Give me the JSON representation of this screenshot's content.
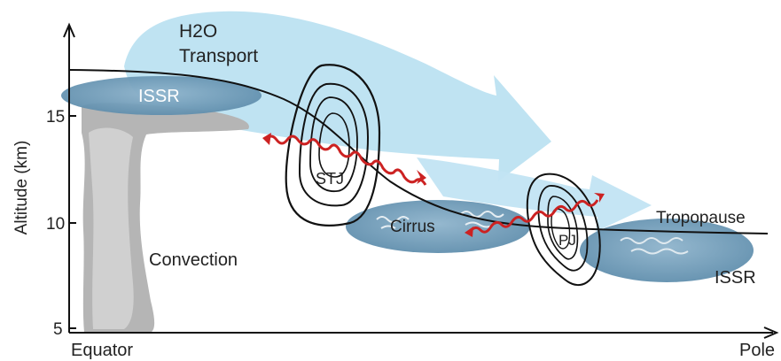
{
  "labels": {
    "h2o_line1": "H2O",
    "h2o_line2": "Transport",
    "issr_left": "ISSR",
    "stj": "STJ",
    "cirrus": "Cirrus",
    "pj": "PJ",
    "tropopause": "Tropopause",
    "convection": "Convection",
    "issr_right": "ISSR"
  },
  "axes": {
    "y_label": "Altitude (km)",
    "y_ticks": [
      "15",
      "10",
      "5"
    ],
    "x_start": "Equator",
    "x_end": "Pole"
  },
  "colors": {
    "transport": "#bfe3f2",
    "issr": "#5e8fae",
    "convection": "#b5b5b5",
    "wave": "#cc2222",
    "lines": "#111111"
  }
}
